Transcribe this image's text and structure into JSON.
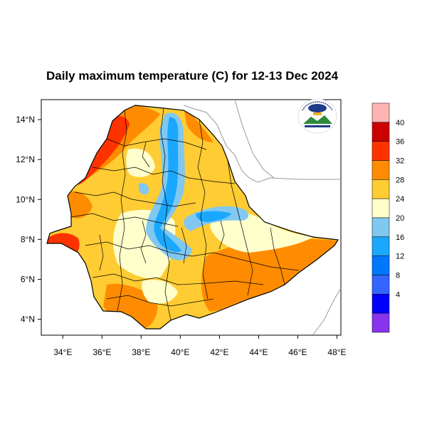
{
  "title": "Daily maximum temperature (C) for 12-13 Dec 2024",
  "map": {
    "lon_ticks": [
      "34°E",
      "36°E",
      "38°E",
      "40°E",
      "42°E",
      "44°E",
      "46°E",
      "48°E"
    ],
    "lat_ticks": [
      "14°N",
      "12°N",
      "10°N",
      "8°N",
      "6°N",
      "4°N"
    ],
    "extent": {
      "lon": [
        32.9,
        48.2
      ],
      "lat": [
        3.2,
        15.0
      ]
    },
    "logo": "ethiopian-meteorology-institute-logo"
  },
  "colorbar": {
    "labels": [
      "40",
      "36",
      "32",
      "28",
      "24",
      "20",
      "16",
      "12",
      "8",
      "4"
    ],
    "colors": [
      "#ffb3b3",
      "#cc0000",
      "#ff3300",
      "#ff8c00",
      "#ffcc33",
      "#ffffcc",
      "#80c8f0",
      "#1aa8ff",
      "#0077ff",
      "#3366ff",
      "#0000ff",
      "#8833ee"
    ]
  },
  "colors": {
    "hot": "#ff3300",
    "warm": "#ff8c00",
    "mild": "#ffcc33",
    "cool": "#ffffcc",
    "cold": "#80c8f0",
    "colder": "#1aa8ff"
  }
}
